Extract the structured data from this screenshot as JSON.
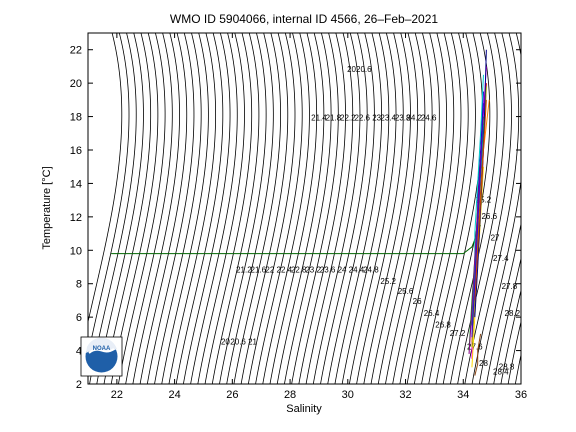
{
  "chart_data": {
    "type": "line",
    "title": "WMO ID 5904066, internal ID 4566, 26–Feb–2021",
    "xlabel": "Salinity",
    "ylabel": "Temperature [°C]",
    "xlim": [
      21,
      36
    ],
    "ylim": [
      2,
      23
    ],
    "xticks": [
      22,
      24,
      26,
      28,
      30,
      32,
      34,
      36
    ],
    "yticks": [
      2,
      4,
      6,
      8,
      10,
      12,
      14,
      16,
      18,
      20,
      22
    ],
    "grid": false,
    "legend": "none",
    "density_contours": {
      "sigma_start": 16.2,
      "sigma_end": 29.8,
      "sigma_step": 0.2,
      "color": "#000000"
    },
    "contour_labels": [
      {
        "text": "2020.6",
        "x": 30.4,
        "y": 20.8
      },
      {
        "text": "21.4",
        "x": 29.0,
        "y": 17.9
      },
      {
        "text": "21.8",
        "x": 29.5,
        "y": 17.9
      },
      {
        "text": "22.2",
        "x": 30.0,
        "y": 17.9
      },
      {
        "text": "22.6",
        "x": 30.5,
        "y": 17.9
      },
      {
        "text": "23",
        "x": 31.0,
        "y": 17.9
      },
      {
        "text": "23.4",
        "x": 31.4,
        "y": 17.9
      },
      {
        "text": "23.8",
        "x": 31.9,
        "y": 17.9
      },
      {
        "text": "24.2",
        "x": 32.3,
        "y": 17.9
      },
      {
        "text": "24.6",
        "x": 32.8,
        "y": 17.9
      },
      {
        "text": "21.2",
        "x": 26.4,
        "y": 8.8
      },
      {
        "text": "21.6",
        "x": 26.9,
        "y": 8.8
      },
      {
        "text": "22",
        "x": 27.3,
        "y": 8.8
      },
      {
        "text": "22.4",
        "x": 27.8,
        "y": 8.8
      },
      {
        "text": "22.8",
        "x": 28.3,
        "y": 8.8
      },
      {
        "text": "23.2",
        "x": 28.8,
        "y": 8.8
      },
      {
        "text": "23.6",
        "x": 29.3,
        "y": 8.8
      },
      {
        "text": "24",
        "x": 29.8,
        "y": 8.8
      },
      {
        "text": "24.4",
        "x": 30.3,
        "y": 8.8
      },
      {
        "text": "24.8",
        "x": 30.8,
        "y": 8.8
      },
      {
        "text": "25.2",
        "x": 31.4,
        "y": 8.1
      },
      {
        "text": "25.6",
        "x": 32.0,
        "y": 7.5
      },
      {
        "text": "26",
        "x": 32.4,
        "y": 6.9
      },
      {
        "text": "26.4",
        "x": 32.9,
        "y": 6.2
      },
      {
        "text": "26.8",
        "x": 33.3,
        "y": 5.5
      },
      {
        "text": "27.2",
        "x": 33.8,
        "y": 5.0
      },
      {
        "text": "27.6",
        "x": 34.4,
        "y": 4.2
      },
      {
        "text": "28",
        "x": 34.7,
        "y": 3.2
      },
      {
        "text": "28.4",
        "x": 35.3,
        "y": 2.7
      },
      {
        "text": "28.8",
        "x": 35.5,
        "y": 3.0
      },
      {
        "text": "25.2",
        "x": 34.7,
        "y": 13.0
      },
      {
        "text": "26.6",
        "x": 34.9,
        "y": 12.0
      },
      {
        "text": "27",
        "x": 35.1,
        "y": 10.7
      },
      {
        "text": "27.4",
        "x": 35.3,
        "y": 9.5
      },
      {
        "text": "27.8",
        "x": 35.6,
        "y": 7.8
      },
      {
        "text": "28.2",
        "x": 35.7,
        "y": 6.2
      },
      {
        "text": "20.",
        "x": 25.8,
        "y": 4.5
      },
      {
        "text": "20.6",
        "x": 26.2,
        "y": 4.5
      },
      {
        "text": "21",
        "x": 26.7,
        "y": 4.5
      }
    ],
    "series": [
      {
        "color": "#006400",
        "x": [
          21.8,
          34.0,
          34.3,
          34.6
        ],
        "y": [
          9.8,
          9.8,
          10.2,
          11.5
        ]
      },
      {
        "color": "#0000cc",
        "x": [
          34.3,
          34.4,
          34.5,
          34.5,
          34.6,
          34.7
        ],
        "y": [
          4.5,
          7.0,
          10.0,
          13.0,
          16.0,
          19.5
        ]
      },
      {
        "color": "#cc0000",
        "x": [
          34.3,
          34.4,
          34.5,
          34.6,
          34.7,
          34.8
        ],
        "y": [
          5.0,
          7.5,
          10.5,
          13.5,
          16.5,
          20.0
        ]
      },
      {
        "color": "#ff00ff",
        "x": [
          34.3,
          34.3,
          34.4,
          34.5,
          34.6,
          34.8
        ],
        "y": [
          3.5,
          6.0,
          9.0,
          12.0,
          15.5,
          21.0
        ]
      },
      {
        "color": "#00aa00",
        "x": [
          34.2,
          34.3,
          34.4,
          34.5,
          34.6,
          34.7
        ],
        "y": [
          4.0,
          7.0,
          9.5,
          12.5,
          15.0,
          18.0
        ]
      },
      {
        "color": "#ff8800",
        "x": [
          34.3,
          34.4,
          34.5,
          34.6,
          34.7,
          34.9
        ],
        "y": [
          4.5,
          7.5,
          10.5,
          13.0,
          16.0,
          19.0
        ]
      },
      {
        "color": "#00cccc",
        "x": [
          34.3,
          34.4,
          34.4,
          34.5,
          34.6,
          34.7
        ],
        "y": [
          5.0,
          8.0,
          11.0,
          14.0,
          17.0,
          20.5
        ]
      },
      {
        "color": "#880088",
        "x": [
          34.2,
          34.3,
          34.4,
          34.5,
          34.6,
          34.7
        ],
        "y": [
          3.8,
          6.5,
          9.5,
          12.5,
          15.5,
          18.5
        ]
      },
      {
        "color": "#aaaa00",
        "x": [
          34.3,
          34.4,
          34.5,
          34.6,
          34.7,
          34.8
        ],
        "y": [
          4.2,
          7.2,
          10.2,
          13.2,
          16.2,
          19.8
        ]
      },
      {
        "color": "#8b4513",
        "x": [
          34.4,
          34.5,
          34.5,
          34.6
        ],
        "y": [
          2.5,
          3.2,
          4.0,
          5.0
        ]
      },
      {
        "color": "#ffd700",
        "x": [
          34.3,
          34.4,
          34.5,
          34.6,
          34.7
        ],
        "y": [
          3.0,
          6.0,
          9.0,
          12.0,
          15.0
        ]
      },
      {
        "color": "#000088",
        "x": [
          34.4,
          34.5,
          34.6,
          34.7,
          34.8
        ],
        "y": [
          6.0,
          9.0,
          12.5,
          16.0,
          22.0
        ]
      },
      {
        "color": "#008888",
        "x": [
          34.3,
          34.4,
          34.5,
          34.6,
          34.7
        ],
        "y": [
          5.5,
          8.5,
          11.5,
          14.5,
          17.5
        ]
      },
      {
        "color": "#cc4400",
        "x": [
          34.4,
          34.5,
          34.6,
          34.7,
          34.8
        ],
        "y": [
          7.0,
          10.0,
          13.0,
          16.0,
          19.0
        ]
      },
      {
        "color": "#4400cc",
        "x": [
          34.3,
          34.4,
          34.5,
          34.6,
          34.7
        ],
        "y": [
          4.8,
          8.0,
          11.5,
          15.0,
          18.8
        ]
      }
    ]
  }
}
